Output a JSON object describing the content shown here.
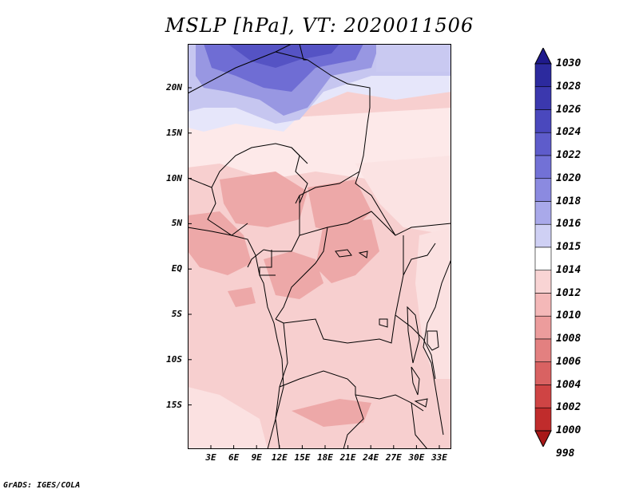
{
  "title": "MSLP [hPa], VT: 2020011506",
  "credit": "GrADS: IGES/COLA",
  "lat_labels": [
    "20N",
    "15N",
    "10N",
    "5N",
    "EQ",
    "5S",
    "10S",
    "15S"
  ],
  "lon_labels": [
    "3E",
    "6E",
    "9E",
    "12E",
    "15E",
    "18E",
    "21E",
    "24E",
    "27E",
    "30E",
    "33E"
  ],
  "colorbar": {
    "labels": [
      "1030",
      "1028",
      "1026",
      "1024",
      "1022",
      "1020",
      "1018",
      "1016",
      "1015",
      "1014",
      "1012",
      "1010",
      "1008",
      "1006",
      "1004",
      "1002",
      "1000",
      "998"
    ],
    "colors": [
      "#1f1a8c",
      "#2c2a9e",
      "#3b38ae",
      "#4a48bd",
      "#5e5ccb",
      "#7271d6",
      "#8b8ae0",
      "#a9a9ea",
      "#cfd0f4",
      "#ffffff",
      "#f9d4d4",
      "#f4b8b8",
      "#ec9c9c",
      "#e38080",
      "#d96262",
      "#cf4444",
      "#c02c2c",
      "#a81818"
    ]
  },
  "region_colors": {
    "north_high": "#6665cc",
    "north_mid": "#9b9ae4",
    "north_light": "#c9c9f1",
    "north_pale": "#e6e6fa",
    "background": "#f7cfcf",
    "land_mid": "#f3bcbc",
    "land_low": "#eba2a2",
    "white_band": "#fdeeee"
  }
}
